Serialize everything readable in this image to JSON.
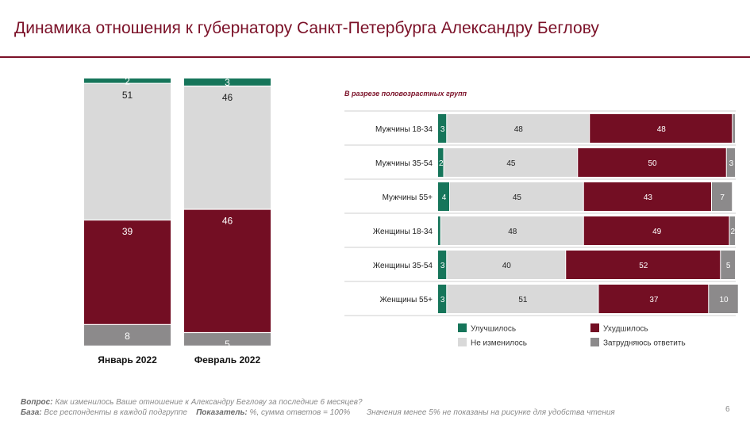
{
  "header": {
    "title": "Динамика отношения к губернатору Санкт-Петербурга Александру Беглову"
  },
  "chart_data": [
    {
      "type": "bar",
      "stacked": true,
      "orientation": "vertical",
      "categories": [
        "Январь 2022",
        "Февраль 2022"
      ],
      "ylim": [
        0,
        100
      ],
      "series": [
        {
          "name": "Затрудняюсь ответить",
          "color": "#8c8a8b",
          "values": [
            8,
            5
          ]
        },
        {
          "name": "Ухудшилось",
          "color": "#730e23",
          "values": [
            39,
            46
          ]
        },
        {
          "name": "Не изменилось",
          "color": "#d9d9d9",
          "values": [
            51,
            46
          ]
        },
        {
          "name": "Улучшилось",
          "color": "#16755a",
          "values": [
            2,
            3
          ]
        }
      ]
    },
    {
      "type": "bar",
      "stacked": true,
      "orientation": "horizontal",
      "subtitle": "В разрезе половозрастных групп",
      "categories": [
        "Мужчины 18-34",
        "Мужчины 35-54",
        "Мужчины 55+",
        "Женщины 18-34",
        "Женщины 35-54",
        "Женщины 55+"
      ],
      "xlim": [
        0,
        100
      ],
      "series": [
        {
          "name": "Улучшилось",
          "color": "#16755a",
          "values": [
            3,
            2,
            4,
            1,
            3,
            3
          ]
        },
        {
          "name": "Не изменилось",
          "color": "#d9d9d9",
          "values": [
            48,
            45,
            45,
            48,
            40,
            51
          ]
        },
        {
          "name": "Ухудшилось",
          "color": "#730e23",
          "values": [
            48,
            50,
            43,
            49,
            52,
            37
          ]
        },
        {
          "name": "Затрудняюсь ответить",
          "color": "#8c8a8b",
          "values": [
            1,
            3,
            7,
            2,
            5,
            10
          ]
        }
      ],
      "hidden_label_note": "Значения менее 5% не показаны на рисунке для удобства чтения"
    }
  ],
  "legend": [
    {
      "label": "Улучшилось",
      "color": "#16755a"
    },
    {
      "label": "Ухудшилось",
      "color": "#730e23"
    },
    {
      "label": "Не изменилось",
      "color": "#d9d9d9"
    },
    {
      "label": "Затрудняюсь ответить",
      "color": "#8c8a8b"
    }
  ],
  "footer": {
    "question_label": "Вопрос:",
    "question_text": "Как изменилось Ваше отношение к Александру Беглову за последние 6 месяцев?",
    "base_label": "База:",
    "base_text": "Все респонденты в каждой подгруппе",
    "metric_label": "Показатель:",
    "metric_text": "%, сумма ответов = 100%",
    "note": "Значения менее 5% не показаны на рисунке для удобства чтения",
    "page_number": "6"
  }
}
